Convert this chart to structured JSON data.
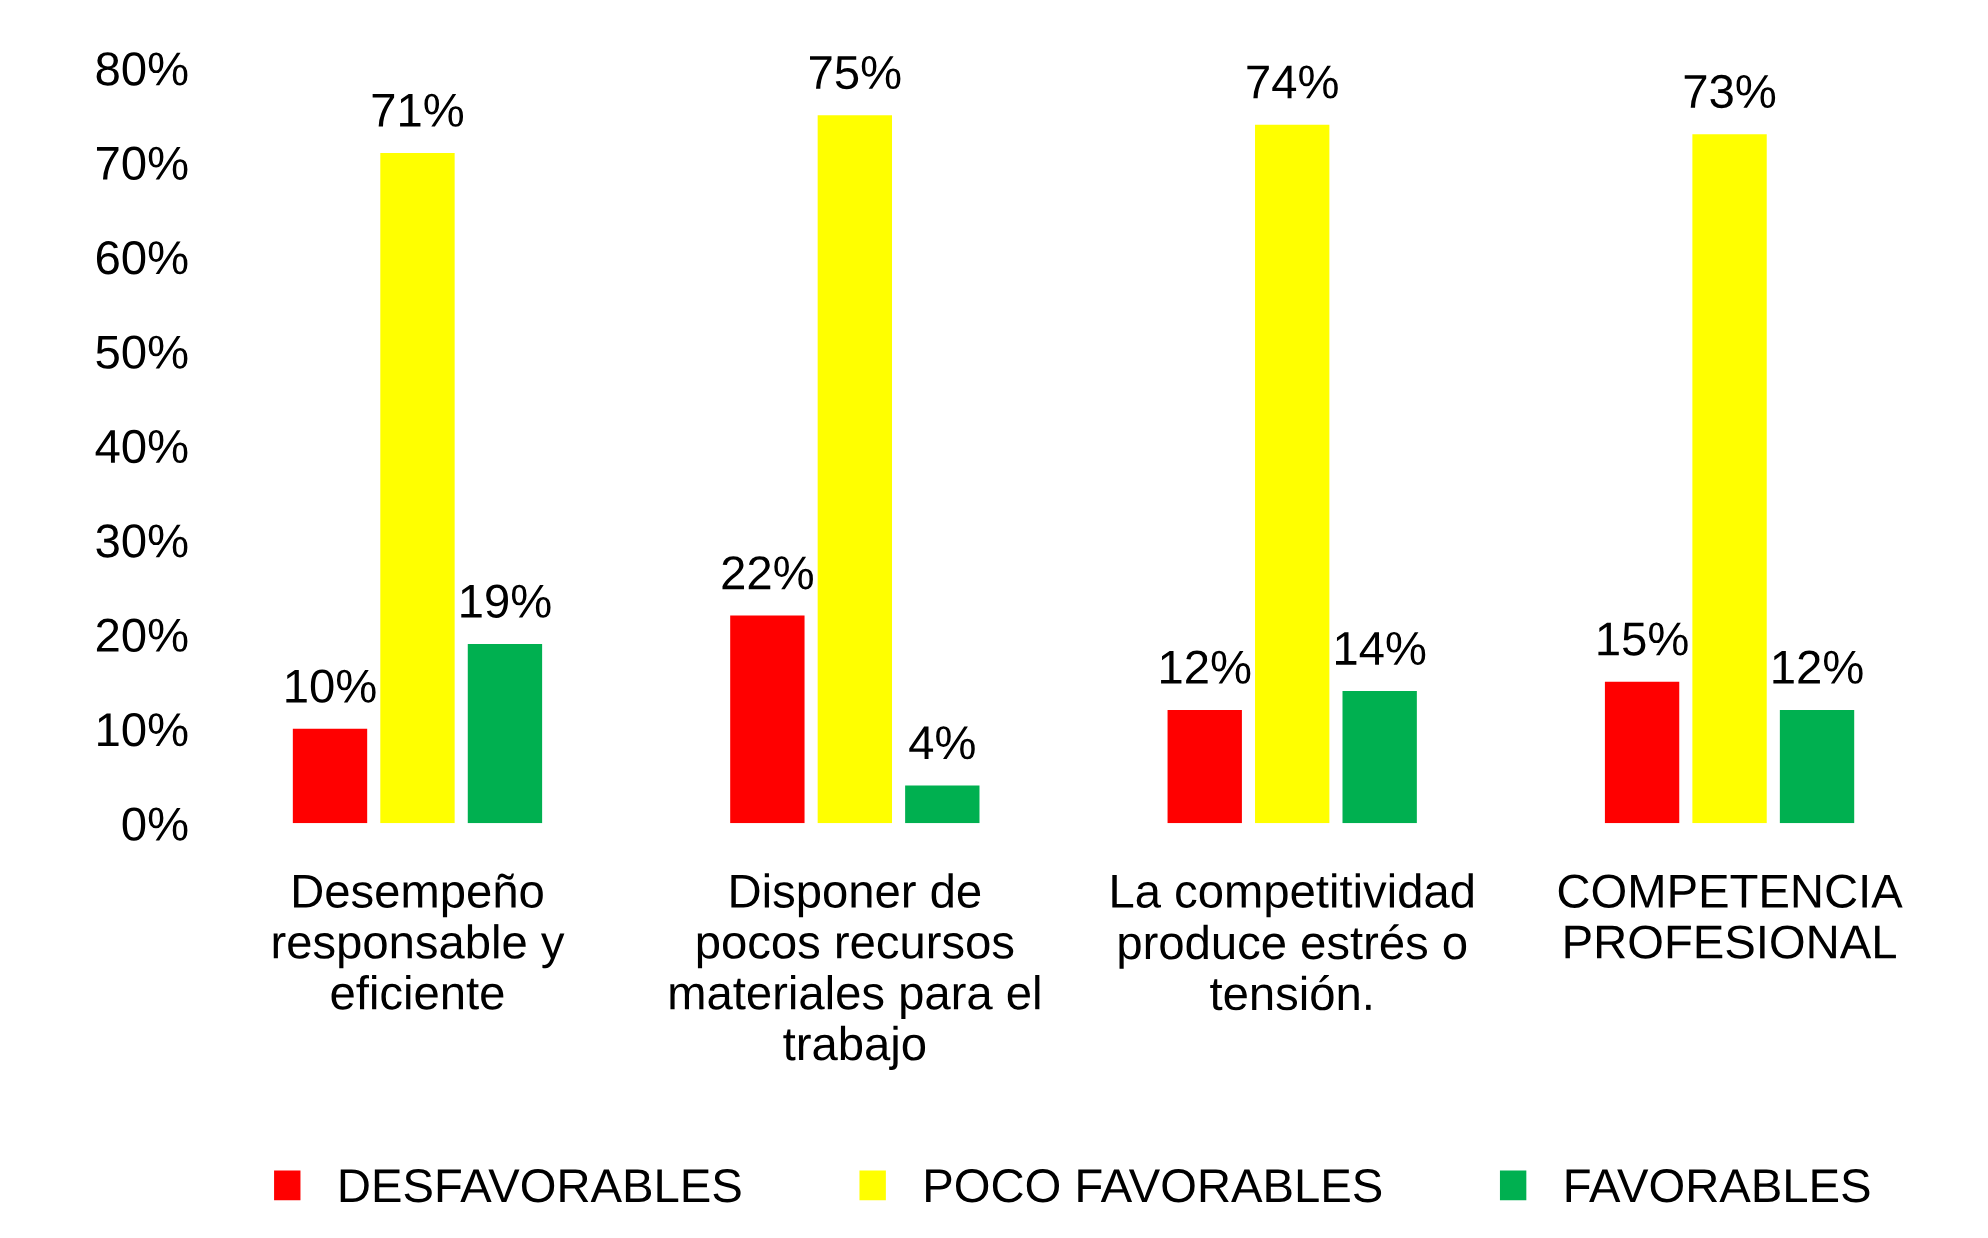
{
  "chart_data": {
    "type": "bar",
    "categories": [
      "Desempeño\nresponsable y\neficiente",
      "Disponer de\npocos recursos\nmateriales para el\ntrabajo",
      "La competitividad\nproduce estrés o\ntensión.",
      "COMPETENCIA\nPROFESIONAL"
    ],
    "series": [
      {
        "name": "DESFAVORABLES",
        "color": "#ff0000",
        "values": [
          10,
          22,
          12,
          15
        ],
        "value_labels": [
          "10%",
          "22%",
          "12%",
          "15%"
        ]
      },
      {
        "name": "POCO FAVORABLES",
        "color": "#ffff00",
        "values": [
          71,
          75,
          74,
          73
        ],
        "value_labels": [
          "71%",
          "75%",
          "74%",
          "73%"
        ]
      },
      {
        "name": "FAVORABLES",
        "color": "#00b050",
        "values": [
          19,
          4,
          14,
          12
        ],
        "value_labels": [
          "19%",
          "4%",
          "14%",
          "12%"
        ]
      }
    ],
    "ylim": [
      0,
      80
    ],
    "yticks": [
      {
        "value": 0,
        "label": "0%"
      },
      {
        "value": 10,
        "label": "10%"
      },
      {
        "value": 20,
        "label": "20%"
      },
      {
        "value": 30,
        "label": "30%"
      },
      {
        "value": 40,
        "label": "40%"
      },
      {
        "value": 50,
        "label": "50%"
      },
      {
        "value": 60,
        "label": "60%"
      },
      {
        "value": 70,
        "label": "70%"
      },
      {
        "value": 80,
        "label": "80%"
      }
    ],
    "grid": false,
    "legend": "bottom"
  }
}
